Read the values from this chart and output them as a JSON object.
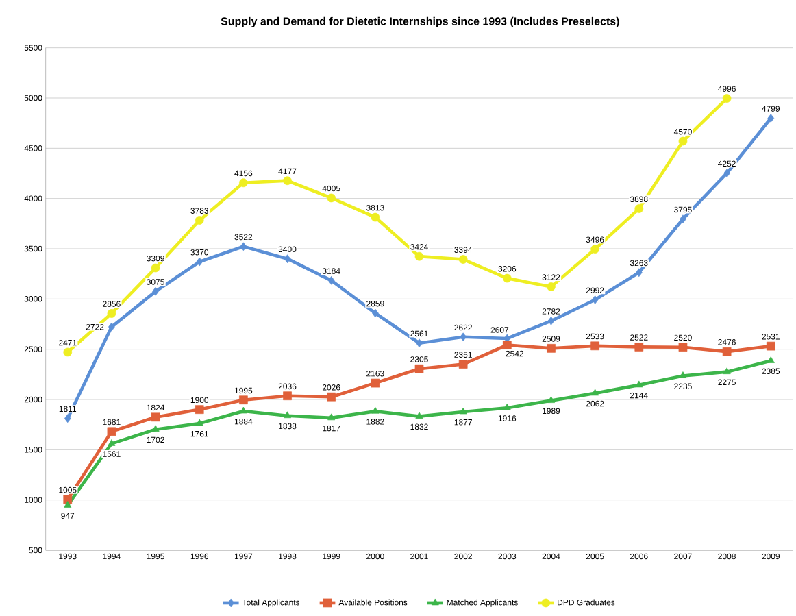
{
  "chart_data": {
    "type": "line",
    "title": "Supply and Demand for Dietetic Internships since 1993 (Includes Preselects)",
    "categories": [
      "1993",
      "1994",
      "1995",
      "1996",
      "1997",
      "1998",
      "1999",
      "2000",
      "2001",
      "2002",
      "2003",
      "2004",
      "2005",
      "2006",
      "2007",
      "2008",
      "2009"
    ],
    "series": [
      {
        "name": "Total Applicants",
        "color": "#5b8fd6",
        "marker": "diamond",
        "values": [
          1811,
          2722,
          3075,
          3370,
          3522,
          3400,
          3184,
          2859,
          2561,
          2622,
          2607,
          2782,
          2992,
          3263,
          3795,
          4252,
          4799
        ]
      },
      {
        "name": "Available Positions",
        "color": "#e0603a",
        "marker": "square",
        "values": [
          1005,
          1681,
          1824,
          1900,
          1995,
          2036,
          2026,
          2163,
          2305,
          2351,
          2542,
          2509,
          2533,
          2522,
          2520,
          2476,
          2531
        ]
      },
      {
        "name": "Matched Applicants",
        "color": "#3cb54a",
        "marker": "triangle",
        "values": [
          947,
          1561,
          1702,
          1761,
          1884,
          1838,
          1817,
          1882,
          1832,
          1877,
          1916,
          1989,
          2062,
          2144,
          2235,
          2275,
          2385
        ]
      },
      {
        "name": "DPD Graduates",
        "color": "#eeee22",
        "marker": "circle",
        "values": [
          2471,
          2856,
          3309,
          3783,
          4156,
          4177,
          4005,
          3813,
          3424,
          3394,
          3206,
          3122,
          3496,
          3898,
          4570,
          4996,
          null
        ]
      }
    ],
    "ylim": [
      500,
      5500
    ],
    "yticks": [
      500,
      1000,
      1500,
      2000,
      2500,
      3000,
      3500,
      4000,
      4500,
      5000,
      5500
    ],
    "grid": "y",
    "legend": "bottom",
    "data_labels": true
  }
}
